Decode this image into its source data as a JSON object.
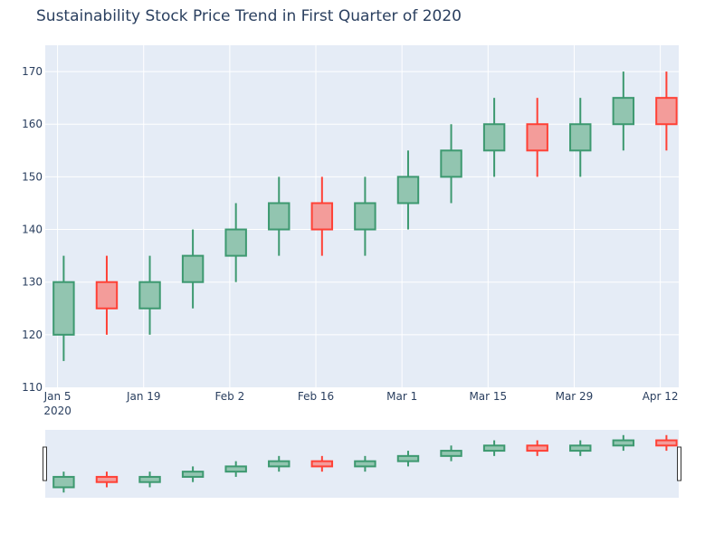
{
  "chart_data": {
    "type": "candlestick",
    "title": "Sustainability Stock Price Trend in First Quarter of 2020",
    "xlabel": "",
    "ylabel": "",
    "ylim": [
      110,
      175
    ],
    "y_ticks": [
      110,
      120,
      130,
      140,
      150,
      160,
      170
    ],
    "x_range": [
      "2020-01-03",
      "2020-04-15"
    ],
    "x_ticks": [
      {
        "date": "2020-01-05",
        "label": "Jan 5",
        "sublabel": "2020"
      },
      {
        "date": "2020-01-19",
        "label": "Jan 19",
        "sublabel": ""
      },
      {
        "date": "2020-02-02",
        "label": "Feb 2",
        "sublabel": ""
      },
      {
        "date": "2020-02-16",
        "label": "Feb 16",
        "sublabel": ""
      },
      {
        "date": "2020-03-01",
        "label": "Mar 1",
        "sublabel": ""
      },
      {
        "date": "2020-03-15",
        "label": "Mar 15",
        "sublabel": ""
      },
      {
        "date": "2020-03-29",
        "label": "Mar 29",
        "sublabel": ""
      },
      {
        "date": "2020-04-12",
        "label": "Apr 12",
        "sublabel": ""
      }
    ],
    "grid": true,
    "rangeslider": true,
    "increasing_color": "#3d9970",
    "decreasing_color": "#ff4136",
    "candles": [
      {
        "date": "2020-01-06",
        "open": 120,
        "high": 135,
        "low": 115,
        "close": 130
      },
      {
        "date": "2020-01-13",
        "open": 130,
        "high": 135,
        "low": 120,
        "close": 125
      },
      {
        "date": "2020-01-20",
        "open": 125,
        "high": 135,
        "low": 120,
        "close": 130
      },
      {
        "date": "2020-01-27",
        "open": 130,
        "high": 140,
        "low": 125,
        "close": 135
      },
      {
        "date": "2020-02-03",
        "open": 135,
        "high": 145,
        "low": 130,
        "close": 140
      },
      {
        "date": "2020-02-10",
        "open": 140,
        "high": 150,
        "low": 135,
        "close": 145
      },
      {
        "date": "2020-02-17",
        "open": 145,
        "high": 150,
        "low": 135,
        "close": 140
      },
      {
        "date": "2020-02-24",
        "open": 140,
        "high": 150,
        "low": 135,
        "close": 145
      },
      {
        "date": "2020-03-02",
        "open": 145,
        "high": 155,
        "low": 140,
        "close": 150
      },
      {
        "date": "2020-03-09",
        "open": 150,
        "high": 160,
        "low": 145,
        "close": 155
      },
      {
        "date": "2020-03-16",
        "open": 155,
        "high": 165,
        "low": 150,
        "close": 160
      },
      {
        "date": "2020-03-23",
        "open": 160,
        "high": 165,
        "low": 150,
        "close": 155
      },
      {
        "date": "2020-03-30",
        "open": 155,
        "high": 165,
        "low": 150,
        "close": 160
      },
      {
        "date": "2020-04-06",
        "open": 160,
        "high": 170,
        "low": 155,
        "close": 165
      },
      {
        "date": "2020-04-13",
        "open": 165,
        "high": 170,
        "low": 155,
        "close": 160
      }
    ]
  }
}
